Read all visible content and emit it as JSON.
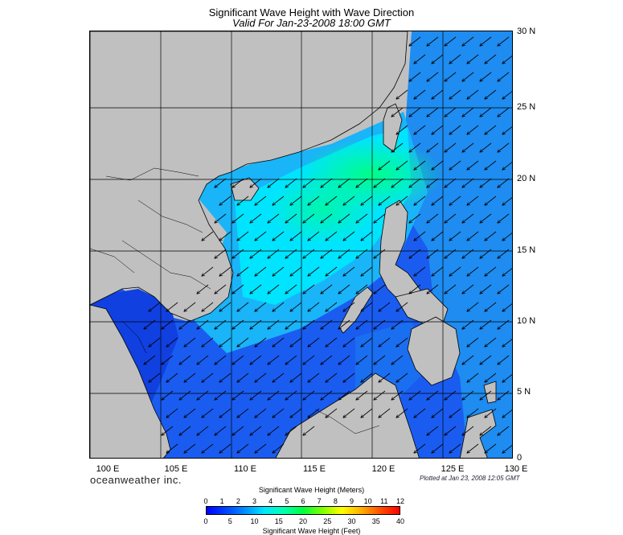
{
  "header": {
    "title": "Significant Wave Height with Wave Direction",
    "subtitle": "Valid For Jan-23-2008 18:00 GMT"
  },
  "map": {
    "latitude_labels": [
      "30 N",
      "25 N",
      "20 N",
      "15 N",
      "10 N",
      "5 N",
      "0"
    ],
    "longitude_labels": [
      "100 E",
      "105 E",
      "110 E",
      "115 E",
      "120 E",
      "125 E",
      "130 E"
    ],
    "land_color": "#c0c0c0",
    "wave_direction": "from the northeast, toward the southwest"
  },
  "footer": {
    "brand": "oceanweather inc.",
    "plotted": "Plotted at Jan 23, 2008 12:05 GMT"
  },
  "colorbar": {
    "title_meters": "Significant Wave Height (Meters)",
    "title_feet": "Significant Wave Height (Feet)",
    "meter_ticks": [
      "0",
      "1",
      "2",
      "3",
      "4",
      "5",
      "6",
      "7",
      "8",
      "9",
      "10",
      "11",
      "12"
    ],
    "feet_ticks": [
      "0",
      "5",
      "10",
      "15",
      "20",
      "25",
      "30",
      "35",
      "40"
    ],
    "colors": [
      "#0000ff",
      "#00a0ff",
      "#00ffb0",
      "#00ff40",
      "#ffff00",
      "#ff0000"
    ]
  }
}
